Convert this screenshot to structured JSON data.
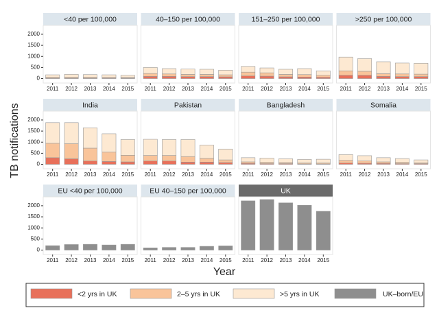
{
  "figure": {
    "ylabel": "TB notifications",
    "xlabel": "Year"
  },
  "chart_data": [
    {
      "type": "bar",
      "title": "<40 per 100,000",
      "categories": [
        "2011",
        "2012",
        "2013",
        "2014",
        "2015"
      ],
      "ylim": [
        -200,
        2400
      ],
      "yticks": [
        0,
        500,
        1000,
        1500,
        2000
      ],
      "series": [
        {
          "name": "<2 yrs in UK",
          "color": "#e8705a",
          "values": [
            20,
            20,
            20,
            20,
            20
          ]
        },
        {
          "name": "2–5 yrs in UK",
          "color": "#f9c49a",
          "values": [
            40,
            40,
            40,
            35,
            30
          ]
        },
        {
          "name": ">5 yrs in UK",
          "color": "#fde9d2",
          "values": [
            110,
            130,
            120,
            115,
            100
          ]
        }
      ]
    },
    {
      "type": "bar",
      "title": "40–150 per 100,000",
      "categories": [
        "2011",
        "2012",
        "2013",
        "2014",
        "2015"
      ],
      "ylim": [
        -200,
        2400
      ],
      "series": [
        {
          "color": "#e8705a",
          "values": [
            100,
            100,
            90,
            90,
            80
          ]
        },
        {
          "color": "#f9c49a",
          "values": [
            130,
            110,
            100,
            100,
            90
          ]
        },
        {
          "color": "#fde9d2",
          "values": [
            270,
            240,
            240,
            230,
            210
          ]
        }
      ]
    },
    {
      "type": "bar",
      "title": "151–250 per 100,000",
      "categories": [
        "2011",
        "2012",
        "2013",
        "2014",
        "2015"
      ],
      "ylim": [
        -200,
        2400
      ],
      "series": [
        {
          "color": "#e8705a",
          "values": [
            120,
            110,
            80,
            70,
            60
          ]
        },
        {
          "color": "#f9c49a",
          "values": [
            170,
            150,
            110,
            110,
            90
          ]
        },
        {
          "color": "#fde9d2",
          "values": [
            260,
            220,
            230,
            270,
            200
          ]
        }
      ]
    },
    {
      "type": "bar",
      "title": ">250 per 100,000",
      "categories": [
        "2011",
        "2012",
        "2013",
        "2014",
        "2015"
      ],
      "ylim": [
        -200,
        2400
      ],
      "series": [
        {
          "color": "#e8705a",
          "values": [
            150,
            150,
            100,
            90,
            90
          ]
        },
        {
          "color": "#f9c49a",
          "values": [
            200,
            180,
            120,
            120,
            110
          ]
        },
        {
          "color": "#fde9d2",
          "values": [
            620,
            570,
            540,
            490,
            490
          ]
        }
      ]
    },
    {
      "type": "bar",
      "title": "India",
      "categories": [
        "2011",
        "2012",
        "2013",
        "2014",
        "2015"
      ],
      "ylim": [
        -200,
        2400
      ],
      "yticks": [
        0,
        500,
        1000,
        1500,
        2000
      ],
      "series": [
        {
          "color": "#e8705a",
          "values": [
            300,
            250,
            150,
            130,
            110
          ]
        },
        {
          "color": "#f9c49a",
          "values": [
            650,
            680,
            580,
            420,
            300
          ]
        },
        {
          "color": "#fde9d2",
          "values": [
            930,
            950,
            920,
            830,
            710
          ]
        }
      ]
    },
    {
      "type": "bar",
      "title": "Pakistan",
      "categories": [
        "2011",
        "2012",
        "2013",
        "2014",
        "2015"
      ],
      "ylim": [
        -200,
        2400
      ],
      "series": [
        {
          "color": "#e8705a",
          "values": [
            150,
            150,
            100,
            100,
            80
          ]
        },
        {
          "color": "#f9c49a",
          "values": [
            250,
            250,
            250,
            170,
            120
          ]
        },
        {
          "color": "#fde9d2",
          "values": [
            730,
            720,
            770,
            600,
            490
          ]
        }
      ]
    },
    {
      "type": "bar",
      "title": "Bangladesh",
      "categories": [
        "2011",
        "2012",
        "2013",
        "2014",
        "2015"
      ],
      "ylim": [
        -200,
        2400
      ],
      "series": [
        {
          "color": "#e8705a",
          "values": [
            40,
            30,
            30,
            20,
            20
          ]
        },
        {
          "color": "#f9c49a",
          "values": [
            70,
            60,
            50,
            40,
            40
          ]
        },
        {
          "color": "#fde9d2",
          "values": [
            190,
            190,
            170,
            160,
            170
          ]
        }
      ]
    },
    {
      "type": "bar",
      "title": "Somalia",
      "categories": [
        "2011",
        "2012",
        "2013",
        "2014",
        "2015"
      ],
      "ylim": [
        -200,
        2400
      ],
      "series": [
        {
          "color": "#e8705a",
          "values": [
            60,
            50,
            40,
            30,
            30
          ]
        },
        {
          "color": "#f9c49a",
          "values": [
            120,
            100,
            70,
            60,
            40
          ]
        },
        {
          "color": "#fde9d2",
          "values": [
            260,
            240,
            190,
            170,
            130
          ]
        }
      ]
    },
    {
      "type": "bar",
      "title": "EU <40 per 100,000",
      "categories": [
        "2011",
        "2012",
        "2013",
        "2014",
        "2015"
      ],
      "ylim": [
        -200,
        2400
      ],
      "yticks": [
        0,
        500,
        1000,
        1500,
        2000
      ],
      "series": [
        {
          "name": "UK–born/EU",
          "color": "#8e8e8e",
          "values": [
            200,
            250,
            260,
            230,
            260
          ]
        }
      ]
    },
    {
      "type": "bar",
      "title": "EU 40–150 per 100,000",
      "categories": [
        "2011",
        "2012",
        "2013",
        "2014",
        "2015"
      ],
      "ylim": [
        -200,
        2400
      ],
      "series": [
        {
          "color": "#8e8e8e",
          "values": [
            100,
            120,
            120,
            170,
            190
          ]
        }
      ]
    },
    {
      "type": "bar",
      "title": "UK",
      "categories": [
        "2011",
        "2012",
        "2013",
        "2014",
        "2015"
      ],
      "ylim": [
        -200,
        2400
      ],
      "series": [
        {
          "color": "#8e8e8e",
          "values": [
            2220,
            2280,
            2130,
            2020,
            1750
          ]
        }
      ]
    }
  ]
}
